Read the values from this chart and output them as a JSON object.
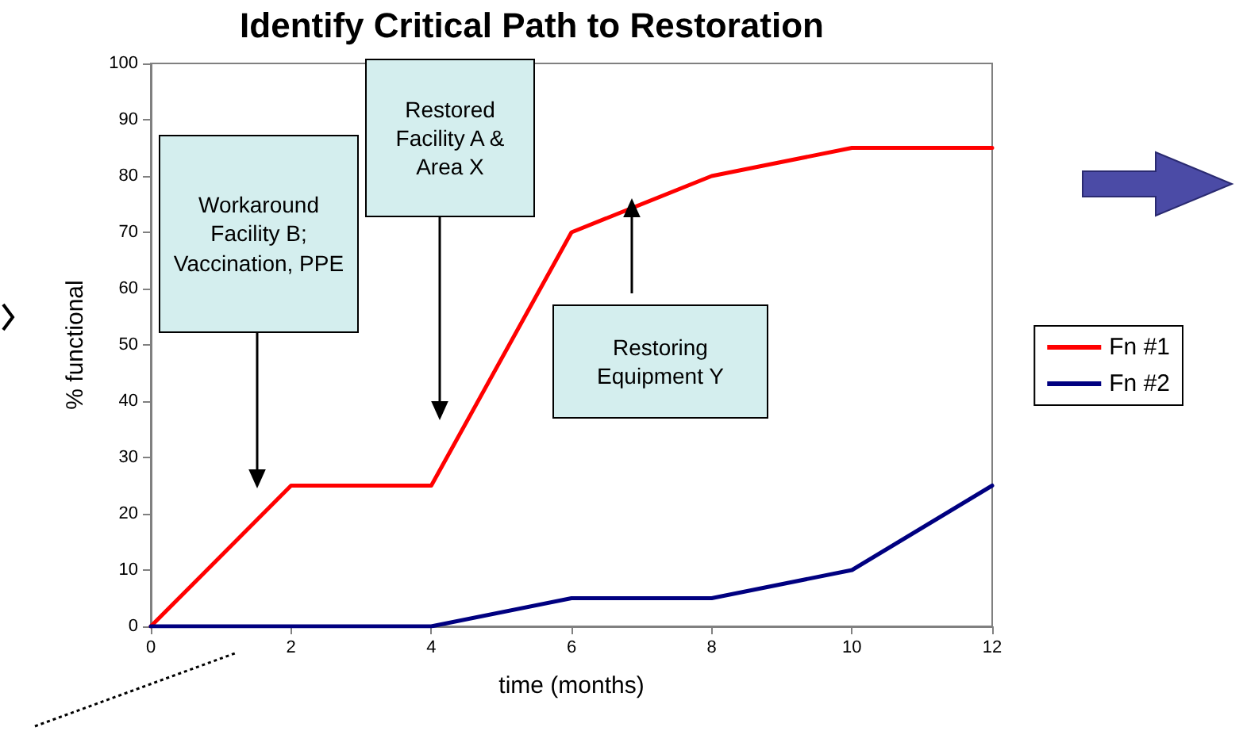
{
  "chart_data": {
    "type": "line",
    "title": "Identify Critical Path to Restoration",
    "xlabel": "time (months)",
    "ylabel": "% functional",
    "x": [
      0,
      2,
      4,
      6,
      8,
      10,
      12
    ],
    "series": [
      {
        "name": "Fn #1",
        "color": "#ff0000",
        "values": [
          0,
          25,
          25,
          70,
          80,
          85,
          85
        ]
      },
      {
        "name": "Fn #2",
        "color": "#000080",
        "values": [
          0,
          0,
          0,
          5,
          5,
          10,
          25
        ]
      }
    ],
    "xlim": [
      0,
      12
    ],
    "xticks": [
      0,
      2,
      4,
      6,
      8,
      10,
      12
    ],
    "ylim": [
      0,
      100
    ],
    "yticks": [
      0,
      10,
      20,
      30,
      40,
      50,
      60,
      70,
      80,
      90,
      100
    ],
    "grid": false,
    "legend": "right",
    "marker": "none",
    "line_style": "solid",
    "annotations": [
      "Workaround Facility B; Vaccination, PPE",
      "Restored Facility A & Area X",
      "Restoring Equipment Y"
    ]
  }
}
